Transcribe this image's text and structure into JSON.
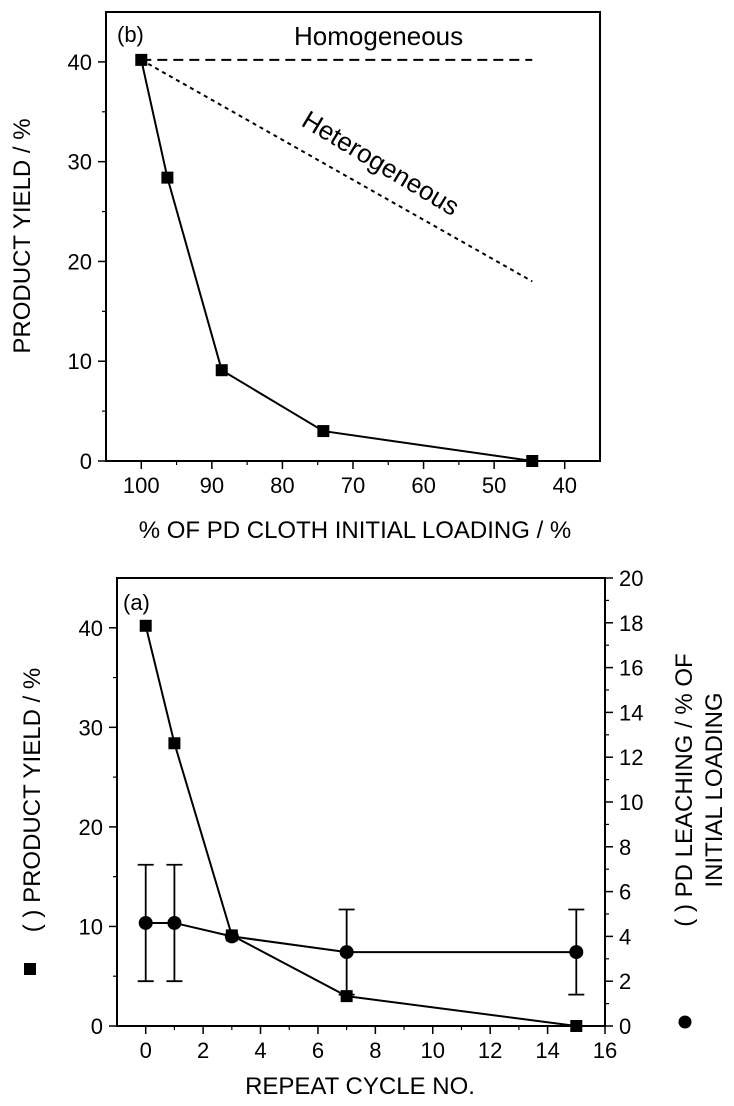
{
  "chart_data": [
    {
      "panel_label": "(b)",
      "type": "line",
      "xlabel": "% OF PD CLOTH INITIAL LOADING / %",
      "ylabel": "PRODUCT YIELD / %",
      "xlim": [
        105,
        35
      ],
      "ylim": [
        0,
        45
      ],
      "x_ticks": [
        100,
        90,
        80,
        70,
        60,
        50,
        40
      ],
      "y_ticks": [
        0,
        10,
        20,
        30,
        40
      ],
      "x_reversed": true,
      "series": [
        {
          "marker": "square",
          "x": [
            100,
            96.3,
            88.6,
            74.2,
            44.6
          ],
          "y": [
            40.2,
            28.4,
            9.1,
            3.0,
            0.0
          ]
        }
      ],
      "reference_lines": [
        {
          "label": "Homogeneous",
          "style": "dashed",
          "x": [
            100,
            44.6
          ],
          "y": [
            40.2,
            40.2
          ]
        },
        {
          "label": "Heterogeneous",
          "style": "dotted",
          "x": [
            100,
            44.6
          ],
          "y": [
            40.2,
            18.0
          ]
        }
      ]
    },
    {
      "panel_label": "(a)",
      "type": "line",
      "xlabel": "REPEAT CYCLE NO.",
      "ylabel_left": "( ) PRODUCT YIELD / %",
      "ylabel_right_line1": "( ) PD LEACHING / % OF",
      "ylabel_right_line2": "INITIAL LOADING",
      "xlim": [
        -1,
        16
      ],
      "ylim_left": [
        0,
        45
      ],
      "ylim_right": [
        0,
        20
      ],
      "x_ticks": [
        0,
        2,
        4,
        6,
        8,
        10,
        12,
        14,
        16
      ],
      "y_ticks_left": [
        0,
        10,
        20,
        30,
        40
      ],
      "y_ticks_right": [
        0,
        2,
        4,
        6,
        8,
        10,
        12,
        14,
        16,
        18,
        20
      ],
      "series": [
        {
          "axis": "left",
          "marker": "square",
          "x": [
            0,
            1,
            3,
            7,
            15
          ],
          "y": [
            40.2,
            28.4,
            9.1,
            3.0,
            0.0
          ]
        },
        {
          "axis": "right",
          "marker": "circle",
          "x": [
            0,
            1,
            3,
            7,
            15
          ],
          "y": [
            4.6,
            4.6,
            4.0,
            3.3,
            3.3
          ],
          "err_low": [
            2.6,
            2.6,
            0,
            1.9,
            1.9
          ],
          "err_high": [
            2.6,
            2.6,
            0,
            1.9,
            1.9
          ]
        }
      ]
    }
  ]
}
